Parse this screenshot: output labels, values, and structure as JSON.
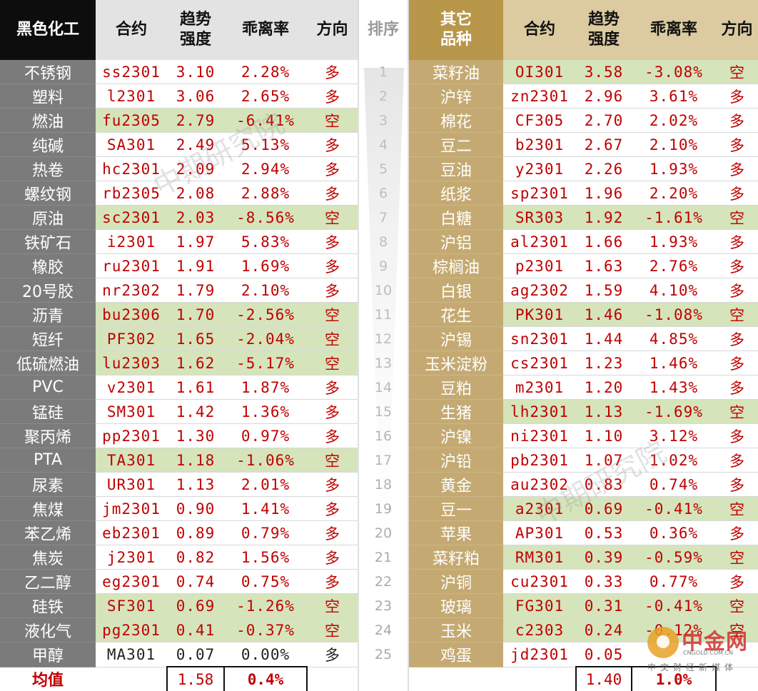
{
  "headers": {
    "left_sector": "黑色化工",
    "left_contract": "合约",
    "left_trend": "趋势\n强度",
    "left_dev": "乖离率",
    "left_dir": "方向",
    "rank": "排序",
    "right_sector": "其它\n品种",
    "right_contract": "合约",
    "right_trend": "趋势\n强度",
    "right_dev": "乖离率",
    "right_dir": "方向"
  },
  "rows": [
    {
      "rank": "1",
      "left": {
        "name": "不锈钢",
        "contract": "ss2301",
        "trend": "3.10",
        "dev": "2.28%",
        "dir": "多",
        "short": false
      },
      "right": {
        "name": "菜籽油",
        "contract": "OI301",
        "trend": "3.58",
        "dev": "-3.08%",
        "dir": "空",
        "short": true
      }
    },
    {
      "rank": "2",
      "left": {
        "name": "塑料",
        "contract": "l2301",
        "trend": "3.06",
        "dev": "2.65%",
        "dir": "多",
        "short": false
      },
      "right": {
        "name": "沪锌",
        "contract": "zn2301",
        "trend": "2.96",
        "dev": "3.61%",
        "dir": "多",
        "short": false
      }
    },
    {
      "rank": "3",
      "left": {
        "name": "燃油",
        "contract": "fu2305",
        "trend": "2.79",
        "dev": "-6.41%",
        "dir": "空",
        "short": true
      },
      "right": {
        "name": "棉花",
        "contract": "CF305",
        "trend": "2.70",
        "dev": "2.02%",
        "dir": "多",
        "short": false
      }
    },
    {
      "rank": "4",
      "left": {
        "name": "纯碱",
        "contract": "SA301",
        "trend": "2.49",
        "dev": "5.13%",
        "dir": "多",
        "short": false
      },
      "right": {
        "name": "豆二",
        "contract": "b2301",
        "trend": "2.67",
        "dev": "2.10%",
        "dir": "多",
        "short": false
      }
    },
    {
      "rank": "5",
      "left": {
        "name": "热卷",
        "contract": "hc2301",
        "trend": "2.09",
        "dev": "2.94%",
        "dir": "多",
        "short": false
      },
      "right": {
        "name": "豆油",
        "contract": "y2301",
        "trend": "2.26",
        "dev": "1.93%",
        "dir": "多",
        "short": false
      }
    },
    {
      "rank": "6",
      "left": {
        "name": "螺纹钢",
        "contract": "rb2305",
        "trend": "2.08",
        "dev": "2.88%",
        "dir": "多",
        "short": false
      },
      "right": {
        "name": "纸浆",
        "contract": "sp2301",
        "trend": "1.96",
        "dev": "2.20%",
        "dir": "多",
        "short": false
      }
    },
    {
      "rank": "7",
      "left": {
        "name": "原油",
        "contract": "sc2301",
        "trend": "2.03",
        "dev": "-8.56%",
        "dir": "空",
        "short": true
      },
      "right": {
        "name": "白糖",
        "contract": "SR303",
        "trend": "1.92",
        "dev": "-1.61%",
        "dir": "空",
        "short": true
      }
    },
    {
      "rank": "8",
      "left": {
        "name": "铁矿石",
        "contract": "i2301",
        "trend": "1.97",
        "dev": "5.83%",
        "dir": "多",
        "short": false
      },
      "right": {
        "name": "沪铝",
        "contract": "al2301",
        "trend": "1.66",
        "dev": "1.93%",
        "dir": "多",
        "short": false
      }
    },
    {
      "rank": "9",
      "left": {
        "name": "橡胶",
        "contract": "ru2301",
        "trend": "1.91",
        "dev": "1.69%",
        "dir": "多",
        "short": false
      },
      "right": {
        "name": "棕榈油",
        "contract": "p2301",
        "trend": "1.63",
        "dev": "2.76%",
        "dir": "多",
        "short": false
      }
    },
    {
      "rank": "10",
      "left": {
        "name": "20号胶",
        "contract": "nr2302",
        "trend": "1.79",
        "dev": "2.10%",
        "dir": "多",
        "short": false
      },
      "right": {
        "name": "白银",
        "contract": "ag2302",
        "trend": "1.59",
        "dev": "4.10%",
        "dir": "多",
        "short": false
      }
    },
    {
      "rank": "11",
      "left": {
        "name": "沥青",
        "contract": "bu2306",
        "trend": "1.70",
        "dev": "-2.56%",
        "dir": "空",
        "short": true
      },
      "right": {
        "name": "花生",
        "contract": "PK301",
        "trend": "1.46",
        "dev": "-1.08%",
        "dir": "空",
        "short": true
      }
    },
    {
      "rank": "12",
      "left": {
        "name": "短纤",
        "contract": "PF302",
        "trend": "1.65",
        "dev": "-2.04%",
        "dir": "空",
        "short": true
      },
      "right": {
        "name": "沪锡",
        "contract": "sn2301",
        "trend": "1.44",
        "dev": "4.85%",
        "dir": "多",
        "short": false
      }
    },
    {
      "rank": "13",
      "left": {
        "name": "低硫燃油",
        "contract": "lu2303",
        "trend": "1.62",
        "dev": "-5.17%",
        "dir": "空",
        "short": true
      },
      "right": {
        "name": "玉米淀粉",
        "contract": "cs2301",
        "trend": "1.23",
        "dev": "1.46%",
        "dir": "多",
        "short": false
      }
    },
    {
      "rank": "14",
      "left": {
        "name": "PVC",
        "contract": "v2301",
        "trend": "1.61",
        "dev": "1.87%",
        "dir": "多",
        "short": false
      },
      "right": {
        "name": "豆粕",
        "contract": "m2301",
        "trend": "1.20",
        "dev": "1.43%",
        "dir": "多",
        "short": false
      }
    },
    {
      "rank": "15",
      "left": {
        "name": "锰硅",
        "contract": "SM301",
        "trend": "1.42",
        "dev": "1.36%",
        "dir": "多",
        "short": false
      },
      "right": {
        "name": "生猪",
        "contract": "lh2301",
        "trend": "1.13",
        "dev": "-1.69%",
        "dir": "空",
        "short": true
      }
    },
    {
      "rank": "16",
      "left": {
        "name": "聚丙烯",
        "contract": "pp2301",
        "trend": "1.30",
        "dev": "0.97%",
        "dir": "多",
        "short": false
      },
      "right": {
        "name": "沪镍",
        "contract": "ni2301",
        "trend": "1.10",
        "dev": "3.12%",
        "dir": "多",
        "short": false
      }
    },
    {
      "rank": "17",
      "left": {
        "name": "PTA",
        "contract": "TA301",
        "trend": "1.18",
        "dev": "-1.06%",
        "dir": "空",
        "short": true
      },
      "right": {
        "name": "沪铅",
        "contract": "pb2301",
        "trend": "1.07",
        "dev": "1.02%",
        "dir": "多",
        "short": false
      }
    },
    {
      "rank": "18",
      "left": {
        "name": "尿素",
        "contract": "UR301",
        "trend": "1.13",
        "dev": "2.01%",
        "dir": "多",
        "short": false
      },
      "right": {
        "name": "黄金",
        "contract": "au2302",
        "trend": "0.83",
        "dev": "0.74%",
        "dir": "多",
        "short": false
      }
    },
    {
      "rank": "19",
      "left": {
        "name": "焦煤",
        "contract": "jm2301",
        "trend": "0.90",
        "dev": "1.41%",
        "dir": "多",
        "short": false
      },
      "right": {
        "name": "豆一",
        "contract": "a2301",
        "trend": "0.69",
        "dev": "-0.41%",
        "dir": "空",
        "short": true
      }
    },
    {
      "rank": "20",
      "left": {
        "name": "苯乙烯",
        "contract": "eb2301",
        "trend": "0.89",
        "dev": "0.79%",
        "dir": "多",
        "short": false
      },
      "right": {
        "name": "苹果",
        "contract": "AP301",
        "trend": "0.53",
        "dev": "0.36%",
        "dir": "多",
        "short": false
      }
    },
    {
      "rank": "21",
      "left": {
        "name": "焦炭",
        "contract": "j2301",
        "trend": "0.82",
        "dev": "1.56%",
        "dir": "多",
        "short": false
      },
      "right": {
        "name": "菜籽粕",
        "contract": "RM301",
        "trend": "0.39",
        "dev": "-0.59%",
        "dir": "空",
        "short": true
      }
    },
    {
      "rank": "22",
      "left": {
        "name": "乙二醇",
        "contract": "eg2301",
        "trend": "0.74",
        "dev": "0.75%",
        "dir": "多",
        "short": false
      },
      "right": {
        "name": "沪铜",
        "contract": "cu2301",
        "trend": "0.33",
        "dev": "0.77%",
        "dir": "多",
        "short": false
      }
    },
    {
      "rank": "23",
      "left": {
        "name": "硅铁",
        "contract": "SF301",
        "trend": "0.69",
        "dev": "-1.26%",
        "dir": "空",
        "short": true
      },
      "right": {
        "name": "玻璃",
        "contract": "FG301",
        "trend": "0.31",
        "dev": "-0.41%",
        "dir": "空",
        "short": true
      }
    },
    {
      "rank": "24",
      "left": {
        "name": "液化气",
        "contract": "pg2301",
        "trend": "0.41",
        "dev": "-0.37%",
        "dir": "空",
        "short": true
      },
      "right": {
        "name": "玉米",
        "contract": "c2303",
        "trend": "0.24",
        "dev": "-0.12%",
        "dir": "空",
        "short": true
      }
    },
    {
      "rank": "25",
      "left": {
        "name": "甲醇",
        "contract": "MA301",
        "trend": "0.07",
        "dev": "0.00%",
        "dir": "多",
        "short": false,
        "neutral": true
      },
      "right": {
        "name": "鸡蛋",
        "contract": "jd2301",
        "trend": "0.05",
        "dev": "",
        "dir": "",
        "short": false
      }
    }
  ],
  "footer": {
    "label": "均值",
    "left_trend": "1.58",
    "left_dev": "0.4%",
    "right_trend": "1.40",
    "right_dev": "1.0%"
  },
  "watermark": "中期研究院",
  "logo": {
    "text": "中金网",
    "sub": "CNGOLD.COM.CN",
    "cn": "中文财经新媒体"
  },
  "colors": {
    "short_highlight": "#d5e4bb",
    "value_red": "#c00000",
    "left_header": "#0d0d0d",
    "right_header": "#b8964a"
  }
}
